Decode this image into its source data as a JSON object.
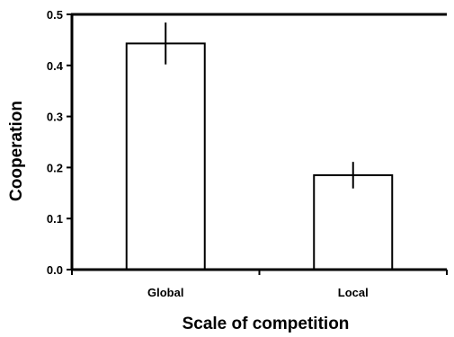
{
  "chart_data": {
    "type": "bar",
    "categories": [
      "Global",
      "Local"
    ],
    "values": [
      0.443,
      0.185
    ],
    "errors": [
      0.041,
      0.026
    ],
    "xlabel": "Scale of competition",
    "ylabel": "Cooperation",
    "ylim": [
      0,
      0.5
    ],
    "yticks": [
      "0.0",
      "0.1",
      "0.2",
      "0.3",
      "0.4",
      "0.5"
    ],
    "grid": false,
    "bar_color": "#ffffff",
    "edge_color": "#000000"
  }
}
